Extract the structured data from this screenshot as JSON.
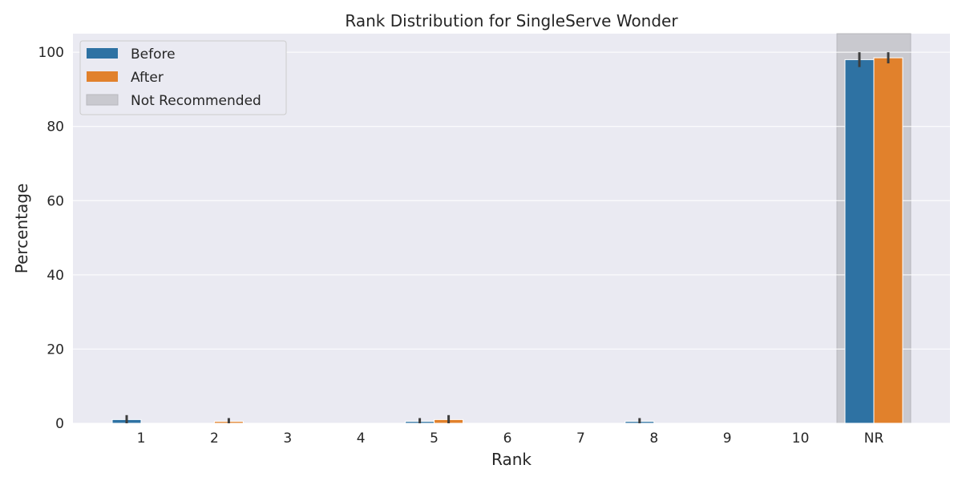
{
  "chart_data": {
    "type": "bar",
    "title": "Rank Distribution for SingleServe Wonder",
    "xlabel": "Rank",
    "ylabel": "Percentage",
    "categories": [
      "1",
      "2",
      "3",
      "4",
      "5",
      "6",
      "7",
      "8",
      "9",
      "10",
      "NR"
    ],
    "ylim": [
      0,
      105
    ],
    "yticks": [
      0,
      20,
      40,
      60,
      80,
      100
    ],
    "grid": true,
    "legend_position": "top-left",
    "highlight": {
      "category": "NR",
      "label": "Not Recommended",
      "color": "#c9c9cf"
    },
    "series": [
      {
        "name": "Before",
        "color": "#2e72a3",
        "values": [
          1.0,
          0,
          0,
          0,
          0.5,
          0,
          0,
          0.5,
          0,
          0,
          98.0
        ],
        "error_low": [
          0,
          0,
          0,
          0,
          0,
          0,
          0,
          0,
          0,
          0,
          96.0
        ],
        "error_high": [
          2.2,
          0,
          0,
          0,
          1.4,
          0,
          0,
          1.4,
          0,
          0,
          100.0
        ]
      },
      {
        "name": "After",
        "color": "#e1812c",
        "values": [
          0,
          0.5,
          0,
          0,
          1.0,
          0,
          0,
          0,
          0,
          0,
          98.5
        ],
        "error_low": [
          0,
          0,
          0,
          0,
          0,
          0,
          0,
          0,
          0,
          0,
          97.0
        ],
        "error_high": [
          0,
          1.4,
          0,
          0,
          2.2,
          0,
          0,
          0,
          0,
          0,
          100.0
        ]
      }
    ]
  }
}
